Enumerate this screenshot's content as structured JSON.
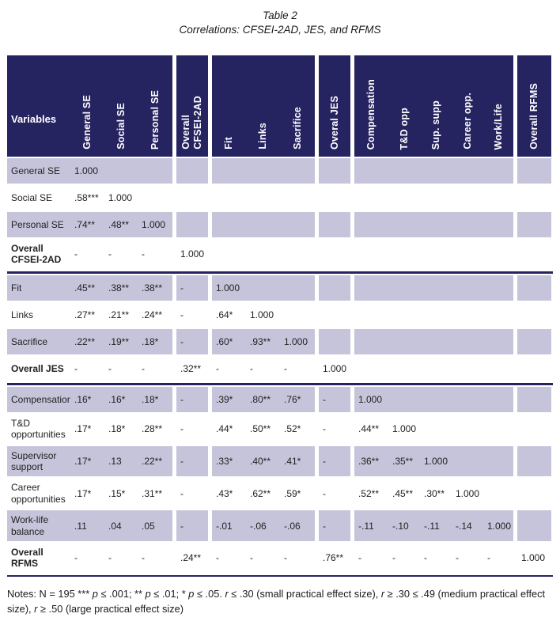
{
  "title": {
    "line1": "Table 2",
    "line2": "Correlations: CFSEI-2AD, JES, and RFMS"
  },
  "colors": {
    "header_navy": "#262361",
    "row_shade": "#c6c4da"
  },
  "table": {
    "corner_label": "Variables",
    "columns": [
      {
        "label": "General SE"
      },
      {
        "label": "Social SE"
      },
      {
        "label": "Personal SE"
      },
      {
        "label": "Overall\nCFSEI-2AD",
        "gutter_before": true
      },
      {
        "label": "Fit",
        "gutter_before": true
      },
      {
        "label": "Links"
      },
      {
        "label": "Sacrifice"
      },
      {
        "label": "Overal JES",
        "gutter_before": true
      },
      {
        "label": "Compensation",
        "gutter_before": true
      },
      {
        "label": "T&D opp"
      },
      {
        "label": "Sup. supp"
      },
      {
        "label": "Career opp."
      },
      {
        "label": "Work/Life"
      },
      {
        "label": "Overall RFMS",
        "gutter_before": true
      }
    ],
    "rows": [
      {
        "label": "General SE",
        "shade": true,
        "bold": false,
        "divider_after": false,
        "cells": [
          "1.000",
          "",
          "",
          "",
          "",
          "",
          "",
          "",
          "",
          "",
          "",
          "",
          "",
          ""
        ]
      },
      {
        "label": "Social SE",
        "shade": false,
        "bold": false,
        "divider_after": false,
        "cells": [
          ".58***",
          "1.000",
          "",
          "",
          "",
          "",
          "",
          "",
          "",
          "",
          "",
          "",
          "",
          ""
        ]
      },
      {
        "label": "Personal SE",
        "shade": true,
        "bold": false,
        "divider_after": false,
        "cells": [
          ".74**",
          ".48**",
          "1.000",
          "",
          "",
          "",
          "",
          "",
          "",
          "",
          "",
          "",
          "",
          ""
        ]
      },
      {
        "label": "Overall\nCFSEI-2AD",
        "shade": false,
        "bold": true,
        "divider_after": true,
        "cells": [
          "-",
          "-",
          "-",
          "1.000",
          "",
          "",
          "",
          "",
          "",
          "",
          "",
          "",
          "",
          ""
        ]
      },
      {
        "label": "Fit",
        "shade": true,
        "bold": false,
        "divider_after": false,
        "cells": [
          ".45**",
          ".38**",
          ".38**",
          "-",
          "1.000",
          "",
          "",
          "",
          "",
          "",
          "",
          "",
          "",
          ""
        ]
      },
      {
        "label": "Links",
        "shade": false,
        "bold": false,
        "divider_after": false,
        "cells": [
          ".27**",
          ".21**",
          ".24**",
          "-",
          ".64*",
          "1.000",
          "",
          "",
          "",
          "",
          "",
          "",
          "",
          ""
        ]
      },
      {
        "label": "Sacrifice",
        "shade": true,
        "bold": false,
        "divider_after": false,
        "cells": [
          ".22**",
          ".19**",
          ".18*",
          "-",
          ".60*",
          ".93**",
          "1.000",
          "",
          "",
          "",
          "",
          "",
          "",
          ""
        ]
      },
      {
        "label": "Overall JES",
        "shade": false,
        "bold": true,
        "divider_after": true,
        "cells": [
          "-",
          "-",
          "-",
          ".32**",
          "-",
          "-",
          "-",
          "1.000",
          "",
          "",
          "",
          "",
          "",
          ""
        ]
      },
      {
        "label": "Compensation",
        "shade": true,
        "bold": false,
        "divider_after": false,
        "cells": [
          ".16*",
          ".16*",
          ".18*",
          "-",
          ".39*",
          ".80**",
          ".76*",
          "-",
          "1.000",
          "",
          "",
          "",
          "",
          ""
        ]
      },
      {
        "label": "T&D\nopportunities",
        "shade": false,
        "bold": false,
        "divider_after": false,
        "cells": [
          ".17*",
          ".18*",
          ".28**",
          "-",
          ".44*",
          ".50**",
          ".52*",
          "-",
          ".44**",
          "1.000",
          "",
          "",
          "",
          ""
        ]
      },
      {
        "label": "Supervisor\nsupport",
        "shade": true,
        "bold": false,
        "divider_after": false,
        "cells": [
          ".17*",
          ".13",
          ".22**",
          "-",
          ".33*",
          ".40**",
          ".41*",
          "-",
          ".36**",
          ".35**",
          "1.000",
          "",
          "",
          ""
        ]
      },
      {
        "label": "Career\nopportunities",
        "shade": false,
        "bold": false,
        "divider_after": false,
        "cells": [
          ".17*",
          ".15*",
          ".31**",
          "-",
          ".43*",
          ".62**",
          ".59*",
          "-",
          ".52**",
          ".45**",
          ".30**",
          "1.000",
          "",
          ""
        ]
      },
      {
        "label": "Work-life\nbalance",
        "shade": true,
        "bold": false,
        "divider_after": false,
        "cells": [
          ".11",
          ".04",
          ".05",
          "-",
          "-.01",
          "-.06",
          "-.06",
          "-",
          "-.11",
          "-.10",
          "-.11",
          "-.14",
          "1.000",
          ""
        ]
      },
      {
        "label": "Overall RFMS",
        "shade": false,
        "bold": true,
        "divider_after": false,
        "cells": [
          "-",
          "-",
          "-",
          ".24**",
          "-",
          "-",
          "-",
          ".76**",
          "-",
          "-",
          "-",
          "-",
          "-",
          "1.000"
        ]
      }
    ]
  },
  "notes": {
    "segments": [
      {
        "text": "Notes: N = 195 *** ",
        "italic": false
      },
      {
        "text": "p",
        "italic": true
      },
      {
        "text": " ≤ .001; ** ",
        "italic": false
      },
      {
        "text": "p",
        "italic": true
      },
      {
        "text": " ≤ .01; * ",
        "italic": false
      },
      {
        "text": "p",
        "italic": true
      },
      {
        "text": " ≤ .05. ",
        "italic": false
      },
      {
        "text": "r",
        "italic": true
      },
      {
        "text": " ≤ .30 (small practical effect size), ",
        "italic": false
      },
      {
        "text": "r",
        "italic": true
      },
      {
        "text": " ≥ .30 ≤ .49 (medium practical effect size), ",
        "italic": false
      },
      {
        "text": "r",
        "italic": true
      },
      {
        "text": " ≥ .50 (large practical effect size)",
        "italic": false
      }
    ]
  }
}
